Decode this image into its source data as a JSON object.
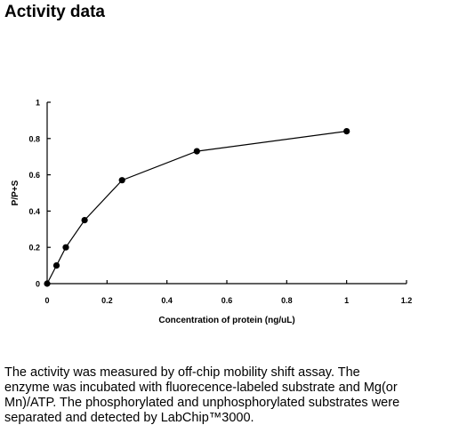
{
  "page": {
    "title": "Activity data"
  },
  "chart_data": {
    "type": "line",
    "title": "",
    "xlabel": "Concentration of protein (ng/uL)",
    "ylabel": "P/P+S",
    "x": [
      0,
      0.03125,
      0.0625,
      0.125,
      0.25,
      0.5,
      1
    ],
    "series": [
      {
        "values": [
          0,
          0.1,
          0.2,
          0.35,
          0.57,
          0.73,
          0.84
        ],
        "color": "#000000"
      }
    ],
    "xlim": [
      0,
      1.2
    ],
    "ylim": [
      0,
      1
    ],
    "xticks": [
      "0",
      "0.2",
      "0.4",
      "0.6",
      "0.8",
      "1",
      "1.2"
    ],
    "yticks": [
      "0",
      "0.2",
      "0.4",
      "0.6",
      "0.8",
      "1"
    ],
    "grid": false,
    "legend": "none",
    "marker": "filled-circle"
  },
  "description": {
    "lines": [
      "The activity was measured by off-chip mobility shift assay. The",
      "enzyme was incubated with fluorecence-labeled  substrate and Mg(or",
      "Mn)/ATP. The phosphorylated and unphosphorylated substrates were",
      "separated and detected by LabChip™3000."
    ]
  }
}
